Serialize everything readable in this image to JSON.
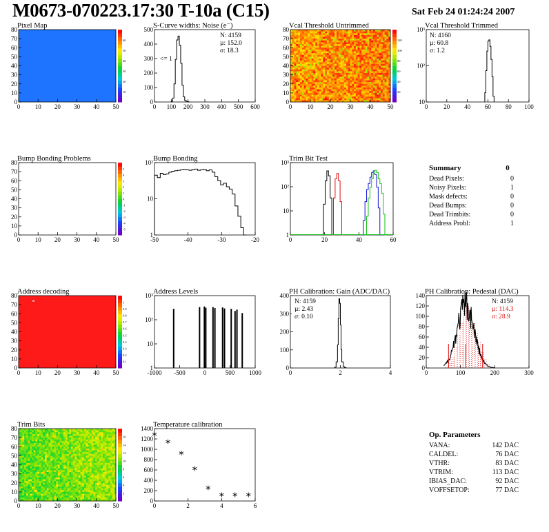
{
  "header": {
    "title": "M0673-070223.17:30 T-10a (C15)",
    "date": "Sat Feb 24 01:24:24 2007"
  },
  "colors": {
    "pixel_map_fill": "#1e73ff",
    "address_fill": "#ff1a1a",
    "hist_line": "#000000",
    "trim_red": "#e01010",
    "trim_blue": "#1010d0",
    "trim_green": "#10c010",
    "pedestal_fill": "#e01010"
  },
  "chart_data": [
    {
      "id": "pixel-map",
      "type": "heatmap",
      "title": "Pixel Map",
      "x_ticks": [
        "0",
        "10",
        "20",
        "30",
        "40",
        "50"
      ],
      "y_ticks": [
        "0",
        "10",
        "20",
        "30",
        "40",
        "50",
        "60",
        "70",
        "80"
      ],
      "xlim": [
        0,
        52
      ],
      "ylim": [
        0,
        80
      ],
      "palette_ticks": [
        "10",
        "20",
        "30",
        "40",
        "50",
        "60"
      ],
      "fill": "uniform"
    },
    {
      "id": "scurve-noise",
      "type": "histogram",
      "title": "S-Curve widths: Noise (e⁻)",
      "x_ticks": [
        "0",
        "100",
        "200",
        "300",
        "400",
        "500",
        "600"
      ],
      "y_ticks": [
        "0",
        "100",
        "200",
        "300",
        "400",
        "500"
      ],
      "xlim": [
        0,
        600
      ],
      "ylim": [
        0,
        560
      ],
      "stats": [
        "N: 4159",
        "µ: 152.0",
        "σ: 18.3"
      ],
      "annotation": "<= 1",
      "x": [
        100,
        108,
        116,
        124,
        132,
        140,
        148,
        156,
        164,
        172,
        180,
        188,
        196,
        204
      ],
      "values": [
        5,
        30,
        140,
        330,
        480,
        510,
        440,
        300,
        130,
        40,
        12,
        4,
        2,
        0
      ]
    },
    {
      "id": "vcal-untrimmed",
      "type": "heatmap",
      "title": "Vcal Threshold Untrimmed",
      "x_ticks": [
        "0",
        "10",
        "20",
        "30",
        "40",
        "50"
      ],
      "y_ticks": [
        "0",
        "10",
        "20",
        "30",
        "40",
        "50",
        "60",
        "70",
        "80"
      ],
      "xlim": [
        0,
        52
      ],
      "ylim": [
        0,
        80
      ],
      "palette_ticks": [
        "20",
        "40",
        "60",
        "80",
        "100",
        "120"
      ]
    },
    {
      "id": "vcal-trimmed",
      "type": "histogram",
      "title": "Vcal Threshold Trimmed",
      "log_y": true,
      "x_ticks": [
        "0",
        "20",
        "40",
        "60",
        "80",
        "100"
      ],
      "y_ticks": [
        "10",
        "10²",
        "10³"
      ],
      "xlim": [
        0,
        100
      ],
      "ylim": [
        1,
        5000
      ],
      "stats": [
        "N: 4160",
        "µ: 60.8",
        "σ: 1.2"
      ],
      "x": [
        57,
        58,
        59,
        60,
        61,
        62,
        63,
        64,
        65
      ],
      "values": [
        3,
        40,
        400,
        1300,
        1500,
        700,
        150,
        20,
        2
      ]
    },
    {
      "id": "bump-bonding-problems",
      "type": "heatmap",
      "title": "Bump Bonding Problems",
      "x_ticks": [
        "0",
        "10",
        "20",
        "30",
        "40",
        "50"
      ],
      "y_ticks": [
        "0",
        "10",
        "20",
        "30",
        "40",
        "50",
        "60",
        "70",
        "80"
      ],
      "xlim": [
        0,
        52
      ],
      "ylim": [
        0,
        80
      ],
      "palette_ticks": [
        "-5",
        "-4",
        "-3",
        "-2",
        "-1",
        "0",
        "1",
        "2",
        "3",
        "4",
        "5"
      ],
      "fill": "empty"
    },
    {
      "id": "bump-bonding",
      "type": "histogram",
      "title": "Bump Bonding",
      "log_y": true,
      "x_ticks": [
        "-50",
        "-40",
        "-30",
        "-20"
      ],
      "y_ticks": [
        "1",
        "10",
        "10²"
      ],
      "xlim": [
        -50,
        -15
      ],
      "ylim": [
        0.5,
        500
      ],
      "x": [
        -50,
        -49,
        -48,
        -47,
        -46,
        -45,
        -44,
        -43,
        -42,
        -41,
        -40,
        -39,
        -38,
        -37,
        -36,
        -35,
        -34,
        -33,
        -32,
        -31,
        -30,
        -29,
        -28,
        -27,
        -26,
        -25,
        -24,
        -23,
        -22,
        -21,
        -20,
        -19
      ],
      "values": [
        150,
        120,
        180,
        160,
        170,
        200,
        220,
        230,
        240,
        250,
        260,
        250,
        240,
        260,
        270,
        240,
        250,
        260,
        230,
        250,
        200,
        130,
        90,
        60,
        70,
        50,
        40,
        25,
        8,
        3,
        1,
        0.5
      ]
    },
    {
      "id": "trim-bit-test",
      "type": "line",
      "title": "Trim Bit Test",
      "log_y": true,
      "x_ticks": [
        "0",
        "20",
        "40",
        "60"
      ],
      "y_ticks": [
        "1",
        "10",
        "10²",
        "10³"
      ],
      "xlim": [
        0,
        62
      ],
      "ylim": [
        1,
        3000
      ],
      "series": [
        {
          "x": [
            19,
            20,
            21,
            22,
            23,
            24,
            25
          ],
          "values": [
            1,
            30,
            400,
            1200,
            700,
            60,
            1
          ]
        },
        {
          "x": [
            25,
            26,
            27,
            28,
            29,
            30,
            31
          ],
          "values": [
            1,
            60,
            500,
            900,
            400,
            40,
            1
          ]
        },
        {
          "x": [
            43,
            44,
            45,
            46,
            47,
            48,
            49,
            50,
            51,
            52,
            53,
            54
          ],
          "values": [
            1,
            5,
            40,
            150,
            300,
            600,
            1000,
            1200,
            800,
            200,
            20,
            1
          ]
        },
        {
          "x": [
            45,
            46,
            47,
            48,
            49,
            50,
            51,
            52,
            53,
            54,
            55,
            56,
            57
          ],
          "values": [
            1,
            8,
            60,
            200,
            500,
            900,
            1300,
            1000,
            500,
            300,
            100,
            10,
            1
          ]
        }
      ]
    },
    {
      "id": "address-decoding",
      "type": "heatmap",
      "title": "Address decoding",
      "x_ticks": [
        "0",
        "10",
        "20",
        "30",
        "40",
        "50"
      ],
      "y_ticks": [
        "0",
        "10",
        "20",
        "30",
        "40",
        "50",
        "60",
        "70",
        "80"
      ],
      "xlim": [
        0,
        52
      ],
      "ylim": [
        0,
        80
      ],
      "palette_ticks": [
        "0.1",
        "0.2",
        "0.3",
        "0.4",
        "0.5",
        "0.6",
        "0.7",
        "0.8",
        "0.9",
        "1"
      ],
      "fill": "uniform"
    },
    {
      "id": "address-levels",
      "type": "histogram",
      "title": "Address Levels",
      "log_y": true,
      "x_ticks": [
        "-1000",
        "-500",
        "0",
        "500",
        "1000"
      ],
      "y_ticks": [
        "1",
        "10",
        "10²",
        "10³"
      ],
      "xlim": [
        -1100,
        1000
      ],
      "ylim": [
        0.5,
        1000
      ],
      "x": [
        -700,
        -160,
        -60,
        -30,
        120,
        160,
        320,
        360,
        500,
        580,
        620,
        730
      ],
      "values": [
        250,
        300,
        320,
        280,
        300,
        270,
        290,
        260,
        250,
        200,
        230,
        160
      ]
    },
    {
      "id": "ph-gain",
      "type": "histogram",
      "title": "PH Calibration: Gain (ADC/DAC)",
      "x_ticks": [
        "0",
        "2",
        "4"
      ],
      "y_ticks": [
        "0",
        "100",
        "200",
        "300",
        "400"
      ],
      "xlim": [
        -1,
        6
      ],
      "ylim": [
        0,
        470
      ],
      "stats": [
        "N: 4159",
        "µ: 2.43",
        "σ: 0.10"
      ],
      "x": [
        2.1,
        2.2,
        2.3,
        2.35,
        2.4,
        2.45,
        2.5,
        2.55,
        2.6,
        2.7,
        2.8
      ],
      "values": [
        5,
        40,
        150,
        320,
        450,
        420,
        280,
        120,
        40,
        8,
        2
      ]
    },
    {
      "id": "ph-pedestal",
      "type": "histogram",
      "title": "PH Calibration: Pedestal (DAC)",
      "x_ticks": [
        "0",
        "100",
        "200",
        "300"
      ],
      "y_ticks": [
        "0",
        "20",
        "40",
        "60",
        "80",
        "100",
        "120",
        "140"
      ],
      "xlim": [
        -20,
        330
      ],
      "ylim": [
        0,
        150
      ],
      "stats": [
        "N: 4159",
        "µ: 114.3",
        "σ: 28.9"
      ],
      "x": [
        40,
        50,
        60,
        70,
        80,
        90,
        100,
        110,
        120,
        130,
        140,
        150,
        160,
        170,
        180,
        190,
        200,
        210
      ],
      "values": [
        2,
        5,
        12,
        25,
        45,
        70,
        95,
        120,
        130,
        115,
        95,
        75,
        55,
        35,
        20,
        10,
        5,
        2
      ]
    },
    {
      "id": "trim-bits",
      "type": "heatmap",
      "title": "Trim Bits",
      "x_ticks": [
        "0",
        "10",
        "20",
        "30",
        "40",
        "50"
      ],
      "y_ticks": [
        "0",
        "10",
        "20",
        "30",
        "40",
        "50",
        "60",
        "70",
        "80"
      ],
      "xlim": [
        0,
        52
      ],
      "ylim": [
        0,
        80
      ],
      "palette_ticks": [
        "2",
        "4",
        "6",
        "8",
        "10",
        "12",
        "14",
        "16"
      ]
    },
    {
      "id": "temperature-calibration",
      "type": "scatter",
      "title": "Temperature calibration",
      "x_ticks": [
        "0",
        "2",
        "4",
        "6"
      ],
      "y_ticks": [
        "0",
        "200",
        "400",
        "600",
        "800",
        "1000",
        "1200",
        "1400"
      ],
      "xlim": [
        0,
        7.5
      ],
      "ylim": [
        -100,
        1500
      ],
      "x": [
        0,
        1,
        2,
        3,
        4,
        5,
        6,
        7
      ],
      "values": [
        1340,
        1170,
        920,
        580,
        150,
        0,
        0,
        0
      ]
    }
  ],
  "summary": {
    "title": "Summary",
    "total": "0",
    "rows": [
      {
        "label": "Dead Pixels:",
        "value": "0"
      },
      {
        "label": "Noisy Pixels:",
        "value": "1"
      },
      {
        "label": "Mask defects:",
        "value": "0"
      },
      {
        "label": "Dead Bumps:",
        "value": "0"
      },
      {
        "label": "Dead Trimbits:",
        "value": "0"
      },
      {
        "label": "Address Probl:",
        "value": "1"
      }
    ]
  },
  "op_parameters": {
    "title": "Op. Parameters",
    "rows": [
      {
        "label": "VANA:",
        "value": "142 DAC"
      },
      {
        "label": "CALDEL:",
        "value": "76 DAC"
      },
      {
        "label": "VTHR:",
        "value": "83 DAC"
      },
      {
        "label": "VTRIM:",
        "value": "113 DAC"
      },
      {
        "label": "IBIAS_DAC:",
        "value": "92 DAC"
      },
      {
        "label": "VOFFSETOP:",
        "value": "77 DAC"
      }
    ]
  }
}
